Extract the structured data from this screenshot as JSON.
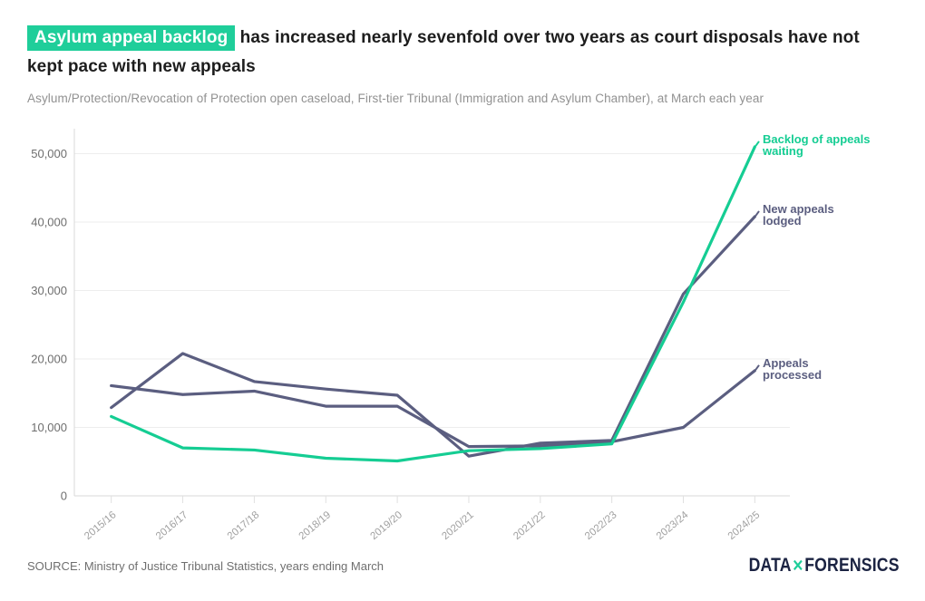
{
  "header": {
    "title_highlight": "Asylum appeal backlog",
    "title_rest": " has increased nearly sevenfold over two years as court disposals have not kept pace with new appeals",
    "subtitle": "Asylum/Protection/Revocation of Protection open caseload, First-tier Tribunal (Immigration and Asylum Chamber), at March each year"
  },
  "chart_data": {
    "type": "line",
    "title": "Asylum appeal backlog has increased nearly sevenfold over two years as court disposals have not kept pace with new appeals",
    "subtitle": "Asylum/Protection/Revocation of Protection open caseload, First-tier Tribunal (Immigration and Asylum Chamber), at March each year",
    "categories": [
      "2015/16",
      "2016/17",
      "2017/18",
      "2018/19",
      "2019/20",
      "2020/21",
      "2021/22",
      "2022/23",
      "2023/24",
      "2024/25"
    ],
    "series": [
      {
        "name": "Backlog of appeals waiting",
        "label_lines": [
          "Backlog of appeals",
          "waiting"
        ],
        "color": "#15cd93",
        "values": [
          11600,
          7000,
          6700,
          5500,
          5100,
          6600,
          6900,
          7600,
          28300,
          51000
        ]
      },
      {
        "name": "New appeals lodged",
        "label_lines": [
          "New appeals",
          "lodged"
        ],
        "color": "#5b5e80",
        "values": [
          12900,
          20800,
          16700,
          15600,
          14700,
          5800,
          7700,
          8100,
          29500,
          40800
        ]
      },
      {
        "name": "Appeals processed",
        "label_lines": [
          "Appeals",
          "processed"
        ],
        "color": "#5b5e80",
        "values": [
          16100,
          14800,
          15300,
          13100,
          13100,
          7200,
          7300,
          7900,
          10000,
          18300
        ]
      }
    ],
    "xlabel": "",
    "ylabel": "",
    "ylim": [
      0,
      52000
    ],
    "yticks": [
      0,
      10000,
      20000,
      30000,
      40000,
      50000
    ],
    "ytick_labels": [
      "0",
      "10,000",
      "20,000",
      "30,000",
      "40,000",
      "50,000"
    ],
    "grid": "horizontal",
    "legend_position": "labels-at-line-ends-right"
  },
  "footer": {
    "source": "SOURCE: Ministry of Justice Tribunal Statistics, years ending March",
    "logo": {
      "text_left": "DATA",
      "separator": "✕",
      "text_right": "FORENSICS"
    }
  },
  "colors": {
    "accent_green": "#1fce9a",
    "line_slate": "#5b5e80",
    "logo_navy": "#1b2342",
    "grid": "#ededed",
    "axis": "#d9d9d9",
    "ytick_text": "#6e6e6e",
    "xtick_text": "#a0a0a0"
  }
}
